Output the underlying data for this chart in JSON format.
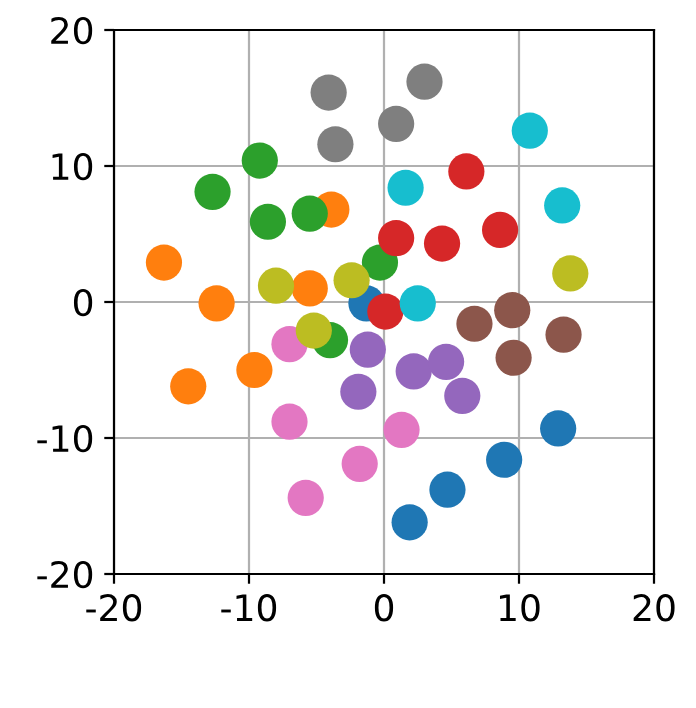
{
  "chart_data": {
    "type": "scatter",
    "xlim": [
      -20,
      20
    ],
    "ylim": [
      -20,
      20
    ],
    "xticks": [
      -20,
      -10,
      0,
      10,
      20
    ],
    "yticks": [
      -20,
      -10,
      0,
      10,
      20
    ],
    "grid": true,
    "marker": "circle",
    "series": [
      {
        "color": "#1f77b4",
        "x": [
          12.9,
          8.9,
          4.7,
          1.9,
          -1.3
        ],
        "values": [
          -9.3,
          -11.6,
          -13.8,
          -16.2,
          -0.1
        ]
      },
      {
        "color": "#ff7f0e",
        "x": [
          -16.3,
          -12.4,
          -14.5,
          -9.6,
          -5.5,
          -3.9
        ],
        "values": [
          2.9,
          -0.1,
          -6.2,
          -5.0,
          1.0,
          6.8
        ]
      },
      {
        "color": "#2ca02c",
        "x": [
          -9.2,
          -12.7,
          -8.6,
          -5.5,
          -0.3,
          -4.0
        ],
        "values": [
          10.4,
          8.1,
          5.9,
          6.5,
          2.9,
          -2.8
        ]
      },
      {
        "color": "#d62728",
        "x": [
          6.1,
          0.9,
          4.3,
          8.6,
          0.1
        ],
        "values": [
          9.6,
          4.7,
          4.3,
          5.3,
          -0.7
        ]
      },
      {
        "color": "#9467bd",
        "x": [
          -1.2,
          2.2,
          4.6,
          5.8,
          -1.9
        ],
        "values": [
          -3.5,
          -5.1,
          -4.4,
          -6.9,
          -6.6
        ]
      },
      {
        "color": "#8c564b",
        "x": [
          6.7,
          9.5,
          13.3,
          9.6
        ],
        "values": [
          -1.6,
          -0.6,
          -2.4,
          -4.1
        ]
      },
      {
        "color": "#e377c2",
        "x": [
          -7.0,
          -7.0,
          -1.8,
          -5.8,
          1.3
        ],
        "values": [
          -3.1,
          -8.8,
          -11.9,
          -14.4,
          -9.4
        ]
      },
      {
        "color": "#7f7f7f",
        "x": [
          -4.1,
          -3.6,
          0.9,
          3.0
        ],
        "values": [
          15.4,
          11.6,
          13.1,
          16.2
        ]
      },
      {
        "color": "#bcbd22",
        "x": [
          -8.0,
          -2.4,
          -5.2,
          13.8
        ],
        "values": [
          1.2,
          1.6,
          -2.1,
          2.1
        ]
      },
      {
        "color": "#17becf",
        "x": [
          1.6,
          10.8,
          13.2,
          2.5
        ],
        "values": [
          8.4,
          12.6,
          7.1,
          -0.1
        ]
      }
    ]
  }
}
